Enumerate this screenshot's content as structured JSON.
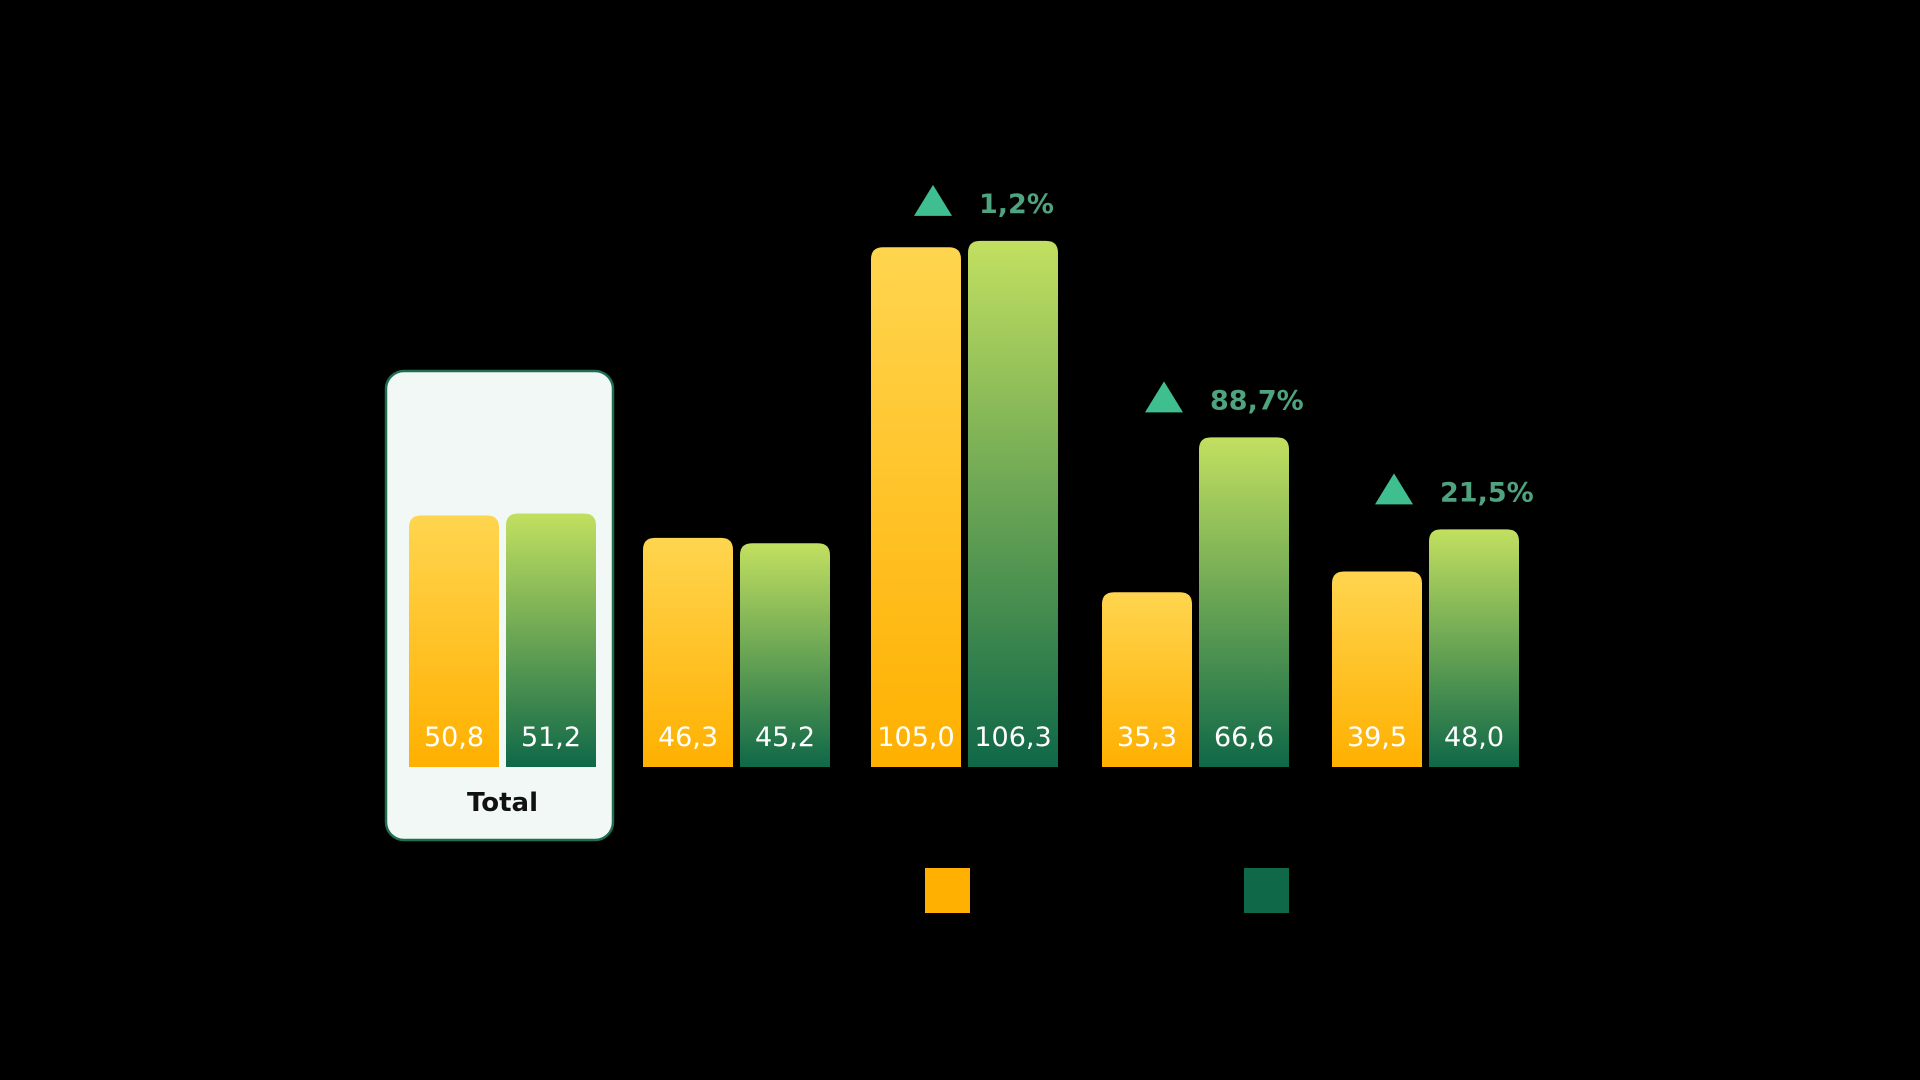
{
  "chart_data": {
    "type": "bar",
    "categories": [
      "Total",
      "",
      "",
      "",
      ""
    ],
    "series": [
      {
        "values": [
          50.8,
          46.3,
          105.0,
          35.3,
          39.5
        ],
        "color": "#ffb000",
        "gradient_top": "#ffd54f"
      },
      {
        "values": [
          51.2,
          45.2,
          106.3,
          66.6,
          48.0
        ],
        "color": "#0f6848",
        "gradient_top": "#c2e060"
      }
    ],
    "value_labels": [
      [
        "50,8",
        "46,3",
        "105,0",
        "35,3",
        "39,5"
      ],
      [
        "51,2",
        "45,2",
        "106,3",
        "66,6",
        "48,0"
      ]
    ],
    "changes": [
      {
        "category_index": 2,
        "direction": "up",
        "label": "1,2%"
      },
      {
        "category_index": 3,
        "direction": "up",
        "label": "88,7%"
      },
      {
        "category_index": 4,
        "direction": "up",
        "label": "21,5%"
      }
    ],
    "highlighted_category": "Total",
    "legend_position": "bottom",
    "grid": false,
    "ylim": [
      0,
      110
    ],
    "title": "",
    "xlabel": "",
    "ylabel": ""
  },
  "colors": {
    "background": "#000000",
    "highlight_fill": "#f2f8f5",
    "highlight_border": "#1f6e50",
    "delta": "#4fa37e",
    "arrow": "#3fbf8f"
  }
}
